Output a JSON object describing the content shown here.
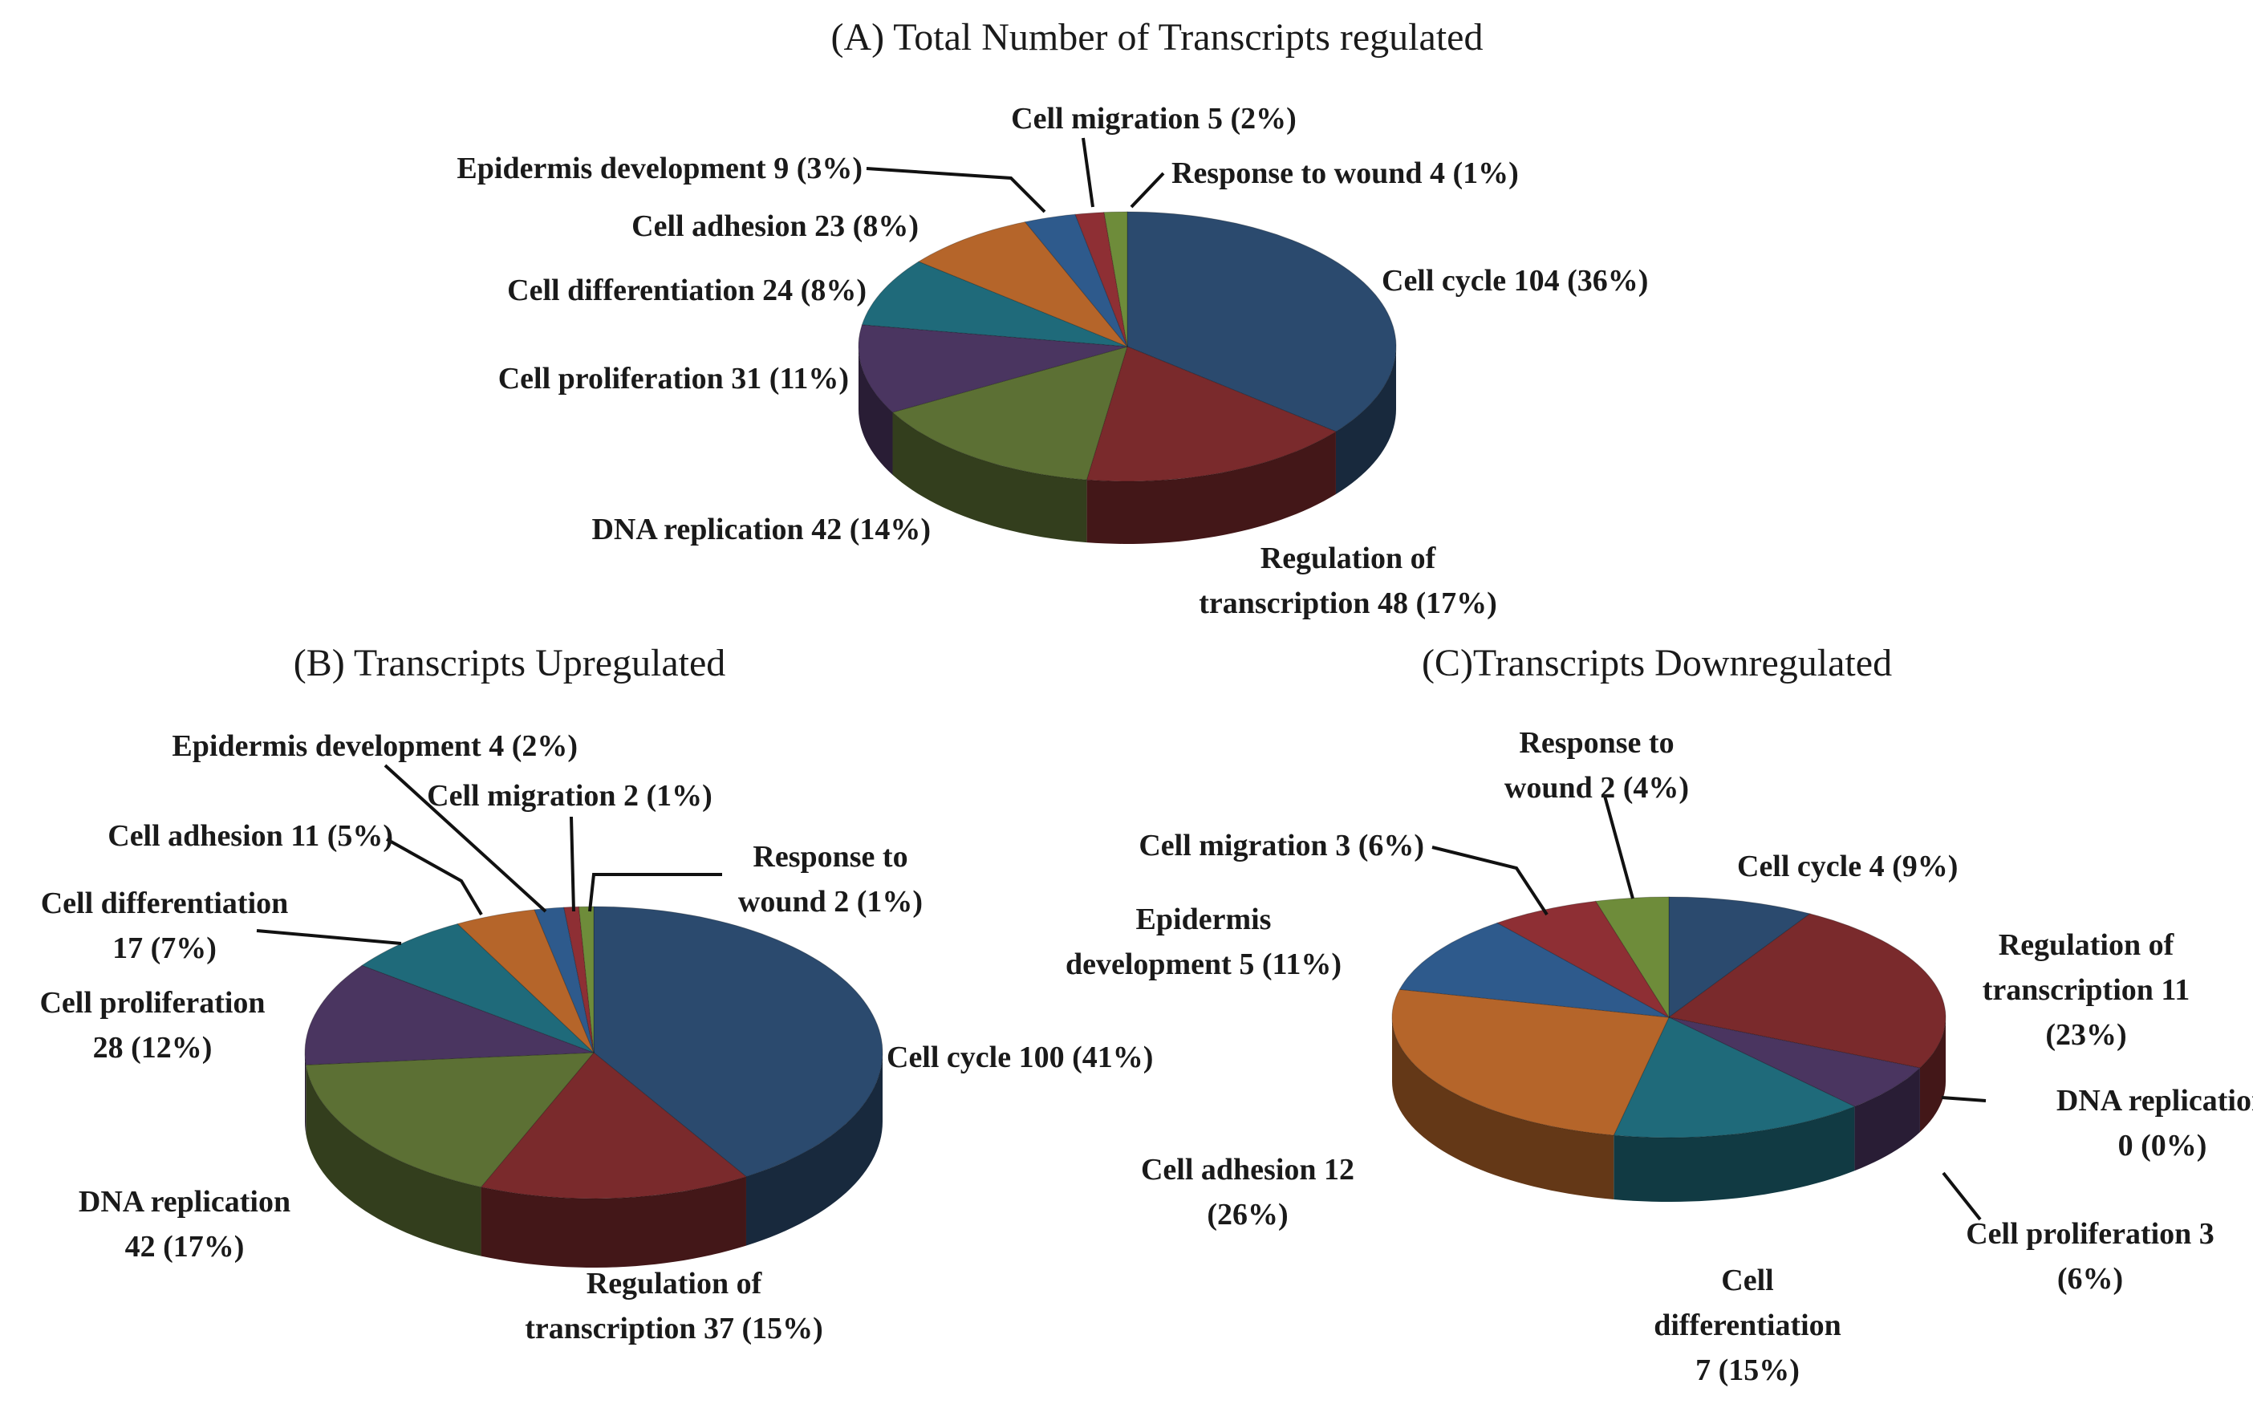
{
  "colors": {
    "cell_cycle": "#2B4A6E",
    "regulation_of_transcription": "#7A2A2C",
    "dna_replication": "#5C7034",
    "cell_proliferation": "#4A3560",
    "cell_differentiation": "#1F6A7A",
    "cell_adhesion": "#B5652A",
    "epidermis_development": "#2E5A8C",
    "cell_migration": "#8E2F34",
    "response_to_wound": "#6E8C3A"
  },
  "chart_data": [
    {
      "type": "pie",
      "title": "(A) Total Number of Transcripts regulated",
      "slices": [
        {
          "key": "cell_cycle",
          "value": 104,
          "label_lines": [
            "Cell cycle 104 (36%)"
          ]
        },
        {
          "key": "regulation_of_transcription",
          "value": 48,
          "label_lines": [
            "Regulation of",
            "transcription 48 (17%)"
          ]
        },
        {
          "key": "dna_replication",
          "value": 42,
          "label_lines": [
            "DNA replication 42 (14%)"
          ]
        },
        {
          "key": "cell_proliferation",
          "value": 31,
          "label_lines": [
            "Cell proliferation 31 (11%)"
          ]
        },
        {
          "key": "cell_differentiation",
          "value": 24,
          "label_lines": [
            "Cell differentiation 24 (8%)"
          ]
        },
        {
          "key": "cell_adhesion",
          "value": 23,
          "label_lines": [
            "Cell adhesion 23 (8%)"
          ]
        },
        {
          "key": "epidermis_development",
          "value": 9,
          "label_lines": [
            "Epidermis development 9 (3%)"
          ]
        },
        {
          "key": "cell_migration",
          "value": 5,
          "label_lines": [
            "Cell migration 5 (2%)"
          ]
        },
        {
          "key": "response_to_wound",
          "value": 4,
          "label_lines": [
            "Response to wound 4 (1%)"
          ]
        }
      ]
    },
    {
      "type": "pie",
      "title": "(B) Transcripts Upregulated",
      "slices": [
        {
          "key": "cell_cycle",
          "value": 100,
          "label_lines": [
            "Cell cycle 100 (41%)"
          ]
        },
        {
          "key": "regulation_of_transcription",
          "value": 37,
          "label_lines": [
            "Regulation of",
            "transcription  37 (15%)"
          ]
        },
        {
          "key": "dna_replication",
          "value": 42,
          "label_lines": [
            "DNA replication",
            "42 (17%)"
          ]
        },
        {
          "key": "cell_proliferation",
          "value": 28,
          "label_lines": [
            "Cell proliferation",
            "28 (12%)"
          ]
        },
        {
          "key": "cell_differentiation",
          "value": 17,
          "label_lines": [
            "Cell differentiation",
            "17 (7%)"
          ]
        },
        {
          "key": "cell_adhesion",
          "value": 11,
          "label_lines": [
            "Cell adhesion 11 (5%)"
          ]
        },
        {
          "key": "epidermis_development",
          "value": 4,
          "label_lines": [
            "Epidermis development 4 (2%)"
          ]
        },
        {
          "key": "cell_migration",
          "value": 2,
          "label_lines": [
            "Cell migration 2 (1%)"
          ]
        },
        {
          "key": "response_to_wound",
          "value": 2,
          "label_lines": [
            "Response to",
            "wound 2 (1%)"
          ]
        }
      ]
    },
    {
      "type": "pie",
      "title": "(C)Transcripts Downregulated",
      "slices": [
        {
          "key": "cell_cycle",
          "value": 4,
          "label_lines": [
            "Cell cycle 4 (9%)"
          ]
        },
        {
          "key": "regulation_of_transcription",
          "value": 11,
          "label_lines": [
            "Regulation of",
            "transcription 11",
            "(23%)"
          ]
        },
        {
          "key": "dna_replication",
          "value": 0,
          "label_lines": [
            "DNA replication",
            "0 (0%)"
          ]
        },
        {
          "key": "cell_proliferation",
          "value": 3,
          "label_lines": [
            "Cell proliferation 3",
            "(6%)"
          ]
        },
        {
          "key": "cell_differentiation",
          "value": 7,
          "label_lines": [
            "Cell",
            "differentiation",
            "7 (15%)"
          ]
        },
        {
          "key": "cell_adhesion",
          "value": 12,
          "label_lines": [
            "Cell adhesion 12",
            "(26%)"
          ]
        },
        {
          "key": "epidermis_development",
          "value": 5,
          "label_lines": [
            "Epidermis",
            "development 5 (11%)"
          ]
        },
        {
          "key": "cell_migration",
          "value": 3,
          "label_lines": [
            "Cell migration 3 (6%)"
          ]
        },
        {
          "key": "response_to_wound",
          "value": 2,
          "label_lines": [
            "Response to",
            "wound 2 (4%)"
          ]
        }
      ]
    }
  ]
}
